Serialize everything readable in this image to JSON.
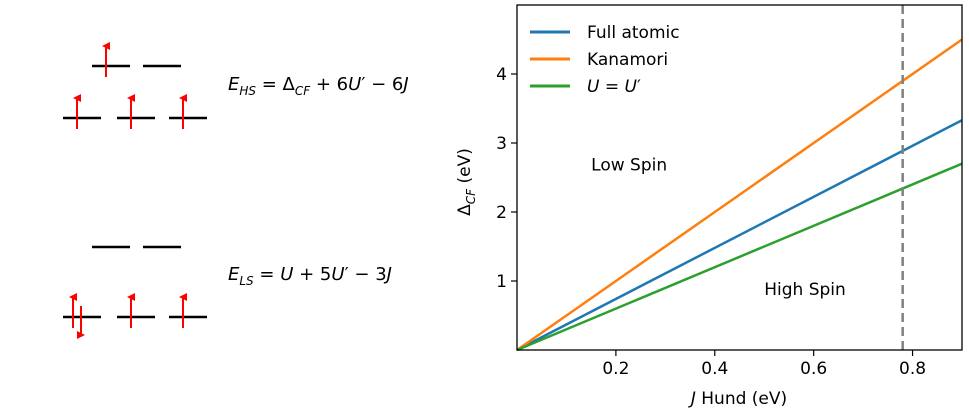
{
  "diagram": {
    "high_spin": {
      "energy_expression": "E_HS = Δ_CF + 6U′ − 6J",
      "upper_levels": [
        "up",
        "empty"
      ],
      "lower_levels": [
        "up",
        "up",
        "up"
      ]
    },
    "low_spin": {
      "energy_expression": "E_LS = U + 5U′ − 3J",
      "upper_levels": [
        "empty",
        "empty"
      ],
      "lower_levels": [
        "up-down",
        "up",
        "up"
      ]
    },
    "arrow_color": "#ff0000"
  },
  "chart_data": {
    "type": "line",
    "xlabel": "J Hund (eV)",
    "ylabel": "Δ_CF (eV)",
    "xlim": [
      0.0,
      0.9
    ],
    "ylim": [
      0.0,
      5.0
    ],
    "xticks": [
      0.2,
      0.4,
      0.6,
      0.8
    ],
    "yticks": [
      1,
      2,
      3,
      4
    ],
    "grid": false,
    "legend_position": "top-left",
    "series": [
      {
        "name": "Full atomic",
        "color": "#1f77b4",
        "x": [
          0.0,
          0.9
        ],
        "y": [
          0.0,
          3.33
        ]
      },
      {
        "name": "Kanamori",
        "color": "#ff7f0e",
        "x": [
          0.0,
          0.9
        ],
        "y": [
          0.0,
          4.5
        ]
      },
      {
        "name": "U = U′",
        "color": "#2ca02c",
        "x": [
          0.0,
          0.9
        ],
        "y": [
          0.0,
          2.7
        ]
      }
    ],
    "vline": {
      "x": 0.78,
      "color": "#808080",
      "style": "dashed"
    },
    "annotations": [
      {
        "text": "Low Spin",
        "x": 0.15,
        "y": 2.6
      },
      {
        "text": "High Spin",
        "x": 0.5,
        "y": 0.8
      }
    ]
  }
}
